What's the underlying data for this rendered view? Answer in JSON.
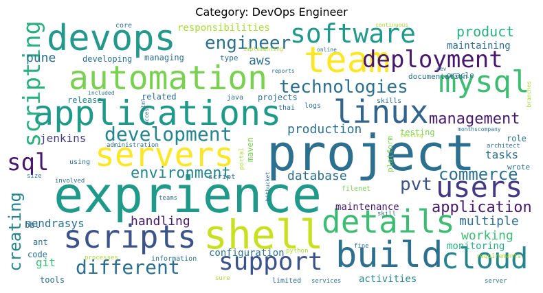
{
  "title": "Category: DevOps Engineer",
  "palette": {
    "purple": "#46196c",
    "indigo": "#3b528b",
    "blue": "#2c6f8e",
    "teal": "#25858e",
    "green": "#2ab07f",
    "lightgreen": "#7ad151",
    "yellowgreen": "#a8db34",
    "yellow": "#fde725"
  },
  "words": [
    {
      "text": "exprience",
      "size": 72,
      "color": "#1f9a8a"
    },
    {
      "text": "project",
      "size": 72,
      "color": "#2c6f8e"
    },
    {
      "text": "shell",
      "size": 58,
      "color": "#c8e020"
    },
    {
      "text": "applications",
      "size": 50,
      "color": "#1f9a8a"
    },
    {
      "text": "automation",
      "size": 48,
      "color": "#7ad151"
    },
    {
      "text": "devops",
      "size": 52,
      "color": "#23988b"
    },
    {
      "text": "team",
      "size": 52,
      "color": "#fde725"
    },
    {
      "text": "servers",
      "size": 48,
      "color": "#fde725"
    },
    {
      "text": "build",
      "size": 52,
      "color": "#2c6f8e"
    },
    {
      "text": "details",
      "size": 46,
      "color": "#3fbc73"
    },
    {
      "text": "scripts",
      "size": 46,
      "color": "#3b528b"
    },
    {
      "text": "linux",
      "size": 46,
      "color": "#32648e"
    },
    {
      "text": "mysql",
      "size": 44,
      "color": "#3fbc73"
    },
    {
      "text": "users",
      "size": 42,
      "color": "#443a83"
    },
    {
      "text": "cloud",
      "size": 42,
      "color": "#25858e"
    },
    {
      "text": "software",
      "size": 38,
      "color": "#1f9a8a"
    },
    {
      "text": "deployment",
      "size": 34,
      "color": "#46196c"
    },
    {
      "text": "support",
      "size": 36,
      "color": "#3b528b"
    },
    {
      "text": "sql",
      "size": 34,
      "color": "#46196c"
    },
    {
      "text": "scripting",
      "size": 34,
      "color": "#2ab07f"
    },
    {
      "text": "development",
      "size": 28,
      "color": "#25858e"
    },
    {
      "text": "different",
      "size": 28,
      "color": "#2c6f8e"
    },
    {
      "text": "technologies",
      "size": 26,
      "color": "#2c6f8e"
    },
    {
      "text": "engineer",
      "size": 26,
      "color": "#2c6f8e"
    },
    {
      "text": "pvt",
      "size": 26,
      "color": "#3b528b"
    },
    {
      "text": "commerce",
      "size": 24,
      "color": "#2c6f8e"
    },
    {
      "text": "environment",
      "size": 22,
      "color": "#25858e"
    },
    {
      "text": "management",
      "size": 22,
      "color": "#46196c"
    },
    {
      "text": "creating",
      "size": 24,
      "color": "#25858e"
    },
    {
      "text": "application",
      "size": 22,
      "color": "#46196c"
    },
    {
      "text": "product",
      "size": 20,
      "color": "#2ab07f"
    },
    {
      "text": "pune",
      "size": 18,
      "color": "#2c6f8e"
    },
    {
      "text": "aws",
      "size": 18,
      "color": "#2c6f8e"
    },
    {
      "text": "production",
      "size": 18,
      "color": "#2c6f8e"
    },
    {
      "text": "database",
      "size": 18,
      "color": "#2c6f8e"
    },
    {
      "text": "handling",
      "size": 18,
      "color": "#46196c"
    },
    {
      "text": "working",
      "size": 18,
      "color": "#3fbc73"
    },
    {
      "text": "multiple",
      "size": 18,
      "color": "#2c6f8e"
    },
    {
      "text": "jenkins",
      "size": 16,
      "color": "#443a83"
    },
    {
      "text": "tasks",
      "size": 16,
      "color": "#2c6f8e"
    },
    {
      "text": "nendrasys",
      "size": 16,
      "color": "#2c6f8e"
    },
    {
      "text": "git",
      "size": 16,
      "color": "#3fbc73"
    },
    {
      "text": "activities",
      "size": 14,
      "color": "#25858e"
    },
    {
      "text": "maintenance",
      "size": 14,
      "color": "#46196c"
    },
    {
      "text": "monitoring",
      "size": 14,
      "color": "#2ab07f"
    },
    {
      "text": "responsibilities",
      "size": 14,
      "color": "#a8db34"
    },
    {
      "text": "maintaining",
      "size": 14,
      "color": "#2c6f8e"
    },
    {
      "text": "configuration",
      "size": 14,
      "color": "#2c6f8e"
    },
    {
      "text": "release",
      "size": 12,
      "color": "#25858e"
    },
    {
      "text": "related",
      "size": 12,
      "color": "#2c6f8e"
    },
    {
      "text": "managing",
      "size": 12,
      "color": "#2c6f8e"
    },
    {
      "text": "developing",
      "size": 12,
      "color": "#2c6f8e"
    },
    {
      "text": "testing",
      "size": 12,
      "color": "#7ad151"
    },
    {
      "text": "role",
      "size": 12,
      "color": "#2c6f8e"
    },
    {
      "text": "maven",
      "size": 12,
      "color": "#7ad151"
    },
    {
      "text": "platform",
      "size": 11,
      "color": "#7ad151"
    },
    {
      "text": "documentation",
      "size": 11,
      "color": "#2c6f8e"
    },
    {
      "text": "type",
      "size": 11,
      "color": "#2c6f8e"
    },
    {
      "text": "tools",
      "size": 12,
      "color": "#2c6f8e"
    },
    {
      "text": "code",
      "size": 12,
      "color": "#2c6f8e"
    },
    {
      "text": "ant",
      "size": 12,
      "color": "#2c6f8e"
    },
    {
      "text": "bbl",
      "size": 12,
      "color": "#2c6f8e"
    },
    {
      "text": "wrote",
      "size": 11,
      "color": "#2c6f8e"
    },
    {
      "text": "oracle",
      "size": 11,
      "color": "#2c6f8e"
    },
    {
      "text": "script",
      "size": 11,
      "color": "#2c6f8e"
    },
    {
      "text": "java",
      "size": 10,
      "color": "#2c6f8e"
    },
    {
      "text": "thai",
      "size": 10,
      "color": "#2c6f8e"
    },
    {
      "text": "logs",
      "size": 10,
      "color": "#2c6f8e"
    },
    {
      "text": "skills",
      "size": 10,
      "color": "#2c6f8e"
    },
    {
      "text": "projects",
      "size": 12,
      "color": "#2c6f8e"
    },
    {
      "text": "information",
      "size": 10,
      "color": "#2c6f8e"
    },
    {
      "text": "using",
      "size": 10,
      "color": "#2c6f8e"
    },
    {
      "text": "core",
      "size": 10,
      "color": "#2c6f8e"
    },
    {
      "text": "filenet",
      "size": 10,
      "color": "#7ad151"
    },
    {
      "text": "fine",
      "size": 9,
      "color": "#2c6f8e"
    },
    {
      "text": "skill",
      "size": 9,
      "color": "#2c6f8e"
    },
    {
      "text": "limited",
      "size": 10,
      "color": "#2c6f8e"
    },
    {
      "text": "services",
      "size": 9,
      "color": "#2c6f8e"
    },
    {
      "text": "sure",
      "size": 9,
      "color": "#a8db34"
    },
    {
      "text": "teams",
      "size": 9,
      "color": "#2c6f8e"
    },
    {
      "text": "involved",
      "size": 9,
      "color": "#2c6f8e"
    },
    {
      "text": "size",
      "size": 9,
      "color": "#2c6f8e"
    },
    {
      "text": "processes",
      "size": 9,
      "color": "#a8db34"
    },
    {
      "text": "python",
      "size": 9,
      "color": "#a8db34"
    },
    {
      "text": "requirements",
      "size": 9,
      "color": "#a8db34"
    },
    {
      "text": "server",
      "size": 9,
      "color": "#2c6f8e"
    },
    {
      "text": "administration",
      "size": 9,
      "color": "#2c6f8e"
    },
    {
      "text": "monthscompany",
      "size": 8,
      "color": "#2c6f8e"
    },
    {
      "text": "architect",
      "size": 9,
      "color": "#2c6f8e"
    },
    {
      "text": "included",
      "size": 8,
      "color": "#2c6f8e"
    },
    {
      "text": "reports",
      "size": 8,
      "color": "#2c6f8e"
    },
    {
      "text": "implementing",
      "size": 8,
      "color": "#a8db34"
    },
    {
      "text": "online",
      "size": 8,
      "color": "#2c6f8e"
    },
    {
      "text": "dev",
      "size": 8,
      "color": "#2c6f8e"
    },
    {
      "text": "continuous",
      "size": 8,
      "color": "#a8db34"
    },
    {
      "text": "testing",
      "size": 8,
      "color": "#a8db34"
    },
    {
      "text": "html",
      "size": 8,
      "color": "#2c6f8e"
    },
    {
      "text": "access",
      "size": 8,
      "color": "#2c6f8e"
    },
    {
      "text": "portal",
      "size": 9,
      "color": "#a8db34"
    },
    {
      "text": "bitbucket",
      "size": 8,
      "color": "#2c6f8e"
    },
    {
      "text": "branches",
      "size": 8,
      "color": "#a8db34"
    }
  ]
}
